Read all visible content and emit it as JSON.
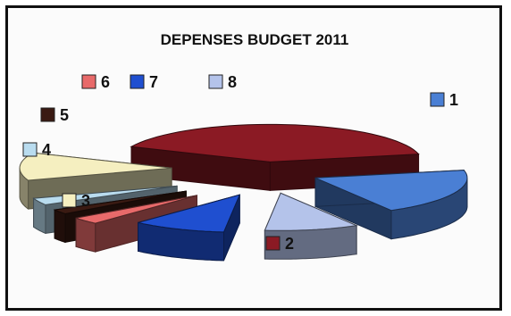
{
  "chart_data": {
    "type": "pie",
    "style": "3d-exploded",
    "title": "DEPENSES BUDGET 2011",
    "legend_placement": "around",
    "slices": [
      {
        "label": "1",
        "value": 20,
        "color": "#4a7fd4"
      },
      {
        "label": "2",
        "value": 40,
        "color": "#8b1a24"
      },
      {
        "label": "3",
        "value": 12,
        "color": "#f5efc0"
      },
      {
        "label": "4",
        "value": 3,
        "color": "#b9dcef"
      },
      {
        "label": "5",
        "value": 2,
        "color": "#3a1a12"
      },
      {
        "label": "6",
        "value": 3,
        "color": "#e86a6a"
      },
      {
        "label": "7",
        "value": 10,
        "color": "#1f4fd0"
      },
      {
        "label": "8",
        "value": 10,
        "color": "#b4c3ea"
      }
    ]
  }
}
